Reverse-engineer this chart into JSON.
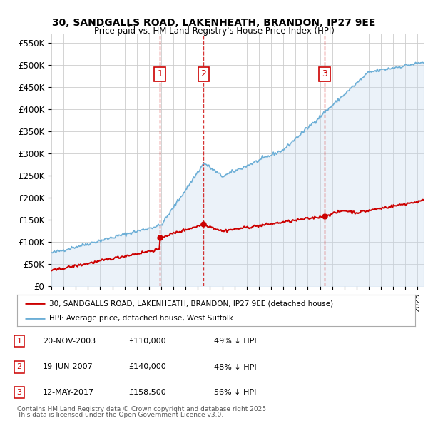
{
  "title_line1": "30, SANDGALLS ROAD, LAKENHEATH, BRANDON, IP27 9EE",
  "title_line2": "Price paid vs. HM Land Registry's House Price Index (HPI)",
  "ylabel_ticks": [
    "£0",
    "£50K",
    "£100K",
    "£150K",
    "£200K",
    "£250K",
    "£300K",
    "£350K",
    "£400K",
    "£450K",
    "£500K",
    "£550K"
  ],
  "ytick_values": [
    0,
    50000,
    100000,
    150000,
    200000,
    250000,
    300000,
    350000,
    400000,
    450000,
    500000,
    550000
  ],
  "ylim": [
    0,
    570000
  ],
  "xlim_start": 1995.0,
  "xlim_end": 2025.5,
  "xtick_years": [
    1995,
    1996,
    1997,
    1998,
    1999,
    2000,
    2001,
    2002,
    2003,
    2004,
    2005,
    2006,
    2007,
    2008,
    2009,
    2010,
    2011,
    2012,
    2013,
    2014,
    2015,
    2016,
    2017,
    2018,
    2019,
    2020,
    2021,
    2022,
    2023,
    2024,
    2025
  ],
  "sale_dates": [
    2003.89,
    2007.47,
    2017.37
  ],
  "sale_prices": [
    110000,
    140000,
    158500
  ],
  "sale_labels": [
    "1",
    "2",
    "3"
  ],
  "sale_info": [
    {
      "num": "1",
      "date": "20-NOV-2003",
      "price": "£110,000",
      "hpi": "49% ↓ HPI"
    },
    {
      "num": "2",
      "date": "19-JUN-2007",
      "price": "£140,000",
      "hpi": "48% ↓ HPI"
    },
    {
      "num": "3",
      "date": "12-MAY-2017",
      "price": "£158,500",
      "hpi": "56% ↓ HPI"
    }
  ],
  "legend_line1": "30, SANDGALLS ROAD, LAKENHEATH, BRANDON, IP27 9EE (detached house)",
  "legend_line2": "HPI: Average price, detached house, West Suffolk",
  "footer_line1": "Contains HM Land Registry data © Crown copyright and database right 2025.",
  "footer_line2": "This data is licensed under the Open Government Licence v3.0.",
  "hpi_color": "#6baed6",
  "hpi_fill_color": "#c6dbef",
  "price_color": "#cc0000",
  "vline_color": "#cc0000",
  "sale_marker_color": "#cc0000",
  "background_color": "#ffffff",
  "plot_bg_color": "#ffffff",
  "grid_color": "#cccccc"
}
